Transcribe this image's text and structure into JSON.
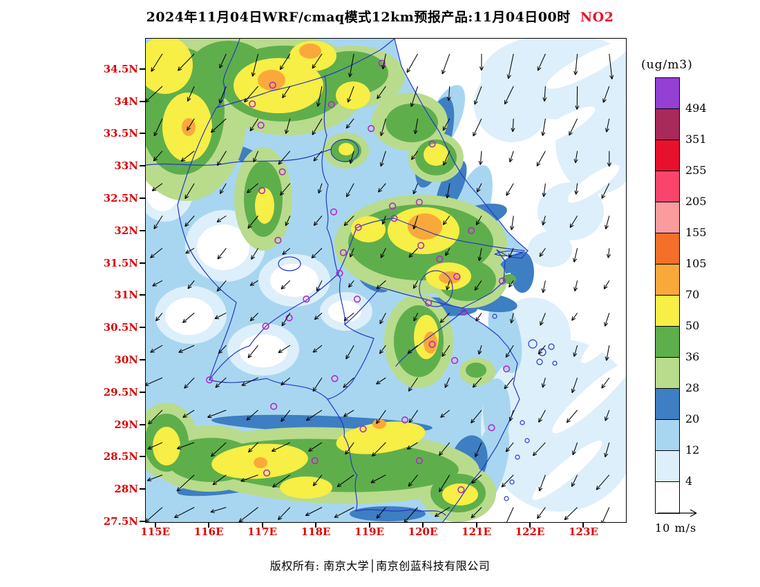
{
  "title": {
    "main": "2024年11月04日WRF/cmaq模式12km预报产品:11月04日00时",
    "species": "NO2"
  },
  "colorbar": {
    "unit": "(ug/m3)",
    "cells_top_to_bottom": [
      "#9440D4",
      "#A82A5B",
      "#E8112D",
      "#F9456B",
      "#FA9B9E",
      "#F4702A",
      "#F9A93B",
      "#F7EE46",
      "#5FAE4C",
      "#B9DB8C",
      "#3E7EC2",
      "#A8D6F0",
      "#DDEFFA",
      "#FFFFFF"
    ],
    "tick_labels_top_to_bottom": [
      "494",
      "351",
      "255",
      "205",
      "155",
      "105",
      "70",
      "50",
      "36",
      "28",
      "20",
      "12",
      "4"
    ]
  },
  "axes": {
    "lat_ticks": [
      "34.5N",
      "34N",
      "33.5N",
      "33N",
      "32.5N",
      "32N",
      "31.5N",
      "31N",
      "30.5N",
      "30N",
      "29.5N",
      "29N",
      "28.5N",
      "28N",
      "27.5N"
    ],
    "lon_ticks": [
      "115E",
      "116E",
      "117E",
      "118E",
      "119E",
      "120E",
      "121E",
      "122E",
      "123E"
    ]
  },
  "wind_legend": {
    "label": "10 m/s"
  },
  "footer": {
    "text": "版权所有: 南京大学│南京创蓝科技有限公司"
  },
  "chart_data": {
    "type": "heatmap",
    "variable": "NO2",
    "unit": "ug/m3",
    "model": "WRF/cmaq 12km",
    "forecast_date": "2024年11月04日",
    "valid_time": "11月04日00时",
    "lon_range": [
      114.81,
      123.78
    ],
    "lat_range": [
      27.5,
      34.98
    ],
    "contour_levels": [
      4,
      12,
      20,
      28,
      36,
      50,
      70,
      105,
      155,
      205,
      255,
      351,
      494
    ],
    "level_colors_low_to_high": [
      "#FFFFFF",
      "#DDEFFA",
      "#A8D6F0",
      "#3E7EC2",
      "#B9DB8C",
      "#5FAE4C",
      "#F7EE46",
      "#F9A93B",
      "#F4702A",
      "#FA9B9E",
      "#F9456B",
      "#E8112D",
      "#A82A5B",
      "#9440D4"
    ],
    "wind": {
      "reference": "10 m/s",
      "grid_bearing_deg_toward": [
        [
          212,
          205,
          198,
          192,
          185
        ],
        [
          222,
          215,
          205,
          198,
          192
        ],
        [
          232,
          225,
          215,
          205,
          198
        ],
        [
          240,
          232,
          225,
          212,
          202
        ],
        [
          244,
          238,
          232,
          220,
          208
        ]
      ],
      "grid_speed_ms": [
        [
          7.5,
          7,
          7,
          7.5,
          8
        ],
        [
          5.5,
          5,
          4.5,
          4.5,
          5
        ],
        [
          4,
          4,
          3.5,
          3.5,
          4
        ],
        [
          6,
          5.5,
          5,
          4.5,
          5
        ],
        [
          7.5,
          7,
          6.5,
          6,
          6
        ]
      ]
    },
    "city_markers_lonlat": [
      [
        117.18,
        34.26
      ],
      [
        116.8,
        33.97
      ],
      [
        116.96,
        33.64
      ],
      [
        118.28,
        33.96
      ],
      [
        119.22,
        34.6
      ],
      [
        119.02,
        33.59
      ],
      [
        120.16,
        33.35
      ],
      [
        117.36,
        32.92
      ],
      [
        116.98,
        32.63
      ],
      [
        118.32,
        32.3
      ],
      [
        119.42,
        32.39
      ],
      [
        119.92,
        32.45
      ],
      [
        118.78,
        32.06
      ],
      [
        119.45,
        32.2
      ],
      [
        119.95,
        31.78
      ],
      [
        120.3,
        31.57
      ],
      [
        120.62,
        31.3
      ],
      [
        120.89,
        32.01
      ],
      [
        121.47,
        31.23
      ],
      [
        117.28,
        31.86
      ],
      [
        118.5,
        31.67
      ],
      [
        118.43,
        31.35
      ],
      [
        117.81,
        30.95
      ],
      [
        117.05,
        30.53
      ],
      [
        118.76,
        30.95
      ],
      [
        120.09,
        30.89
      ],
      [
        120.75,
        30.75
      ],
      [
        120.16,
        30.25
      ],
      [
        120.58,
        30.0
      ],
      [
        121.55,
        29.87
      ],
      [
        119.65,
        29.08
      ],
      [
        118.87,
        28.94
      ],
      [
        119.92,
        28.45
      ],
      [
        121.27,
        28.96
      ],
      [
        120.7,
        28.0
      ],
      [
        118.34,
        29.72
      ],
      [
        117.49,
        30.66
      ],
      [
        116.0,
        29.7
      ],
      [
        117.2,
        29.29
      ],
      [
        117.97,
        28.45
      ],
      [
        117.07,
        28.26
      ]
    ]
  }
}
